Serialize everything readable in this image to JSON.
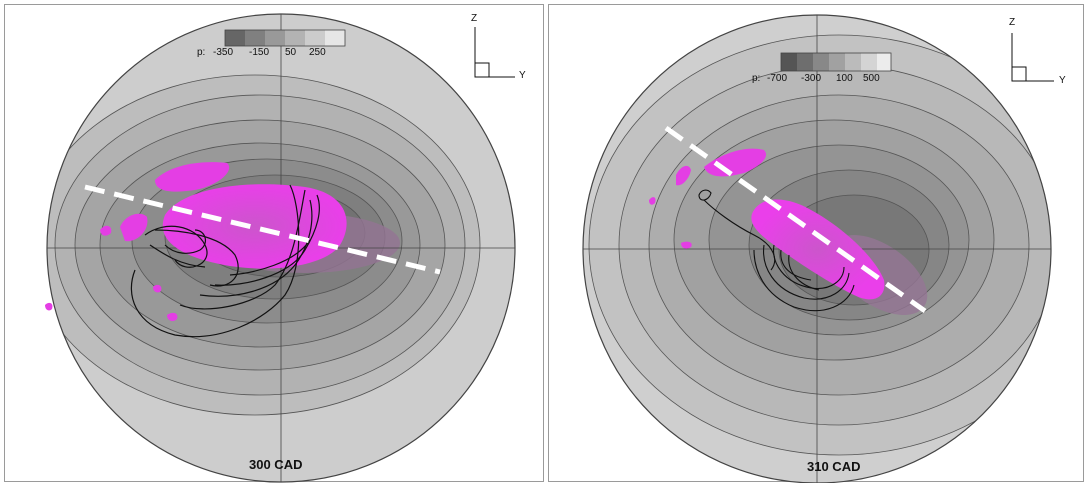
{
  "panels": [
    {
      "name": "left",
      "cad_label": "300 CAD",
      "colorbar": {
        "prefix": "p:",
        "ticks": [
          "-350",
          "-150",
          "50",
          "250"
        ]
      },
      "axes": {
        "vertical": "Z",
        "horizontal": "Y"
      }
    },
    {
      "name": "right",
      "cad_label": "310 CAD",
      "colorbar": {
        "prefix": "p:",
        "ticks": [
          "-700",
          "-300",
          "100",
          "500"
        ]
      },
      "axes": {
        "vertical": "Z",
        "horizontal": "Y"
      }
    }
  ],
  "colors": {
    "isosurface": "#e23ee2",
    "isosurface_shadow": "#a02aa8",
    "streamline": "#111111",
    "dashed_line": "#ffffff",
    "contour_light": "#c8c8c8",
    "contour_dark": "#6a6a6a"
  }
}
